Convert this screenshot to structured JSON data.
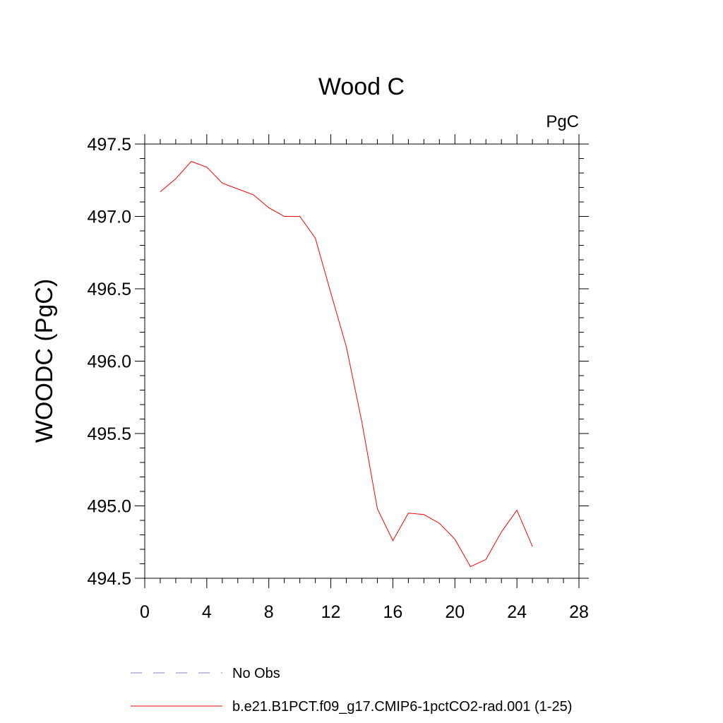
{
  "chart_data": {
    "type": "line",
    "title": "Wood C",
    "units_label": "PgC",
    "ylabel": "WOODC  (PgC)",
    "xlim": [
      0,
      28
    ],
    "ylim": [
      494.5,
      497.5
    ],
    "x_ticks": [
      0,
      4,
      8,
      12,
      16,
      20,
      24,
      28
    ],
    "y_ticks": [
      494.5,
      495.0,
      495.5,
      496.0,
      496.5,
      497.0,
      497.5
    ],
    "y_tick_labels": [
      "494.5",
      "495.0",
      "495.5",
      "496.0",
      "496.5",
      "497.0",
      "497.5"
    ],
    "grid": false,
    "series": [
      {
        "name": "b.e21.B1PCT.f09_g17.CMIP6-1pctCO2-rad.001 (1-25)",
        "color": "#ff0000",
        "x": [
          1,
          2,
          3,
          4,
          5,
          6,
          7,
          8,
          9,
          10,
          11,
          12,
          13,
          14,
          15,
          16,
          17,
          18,
          19,
          20,
          21,
          22,
          23,
          24,
          25
        ],
        "y": [
          497.17,
          497.26,
          497.38,
          497.34,
          497.23,
          497.19,
          497.15,
          497.06,
          497.0,
          497.0,
          496.85,
          496.47,
          496.1,
          495.58,
          494.98,
          494.76,
          494.95,
          494.94,
          494.88,
          494.77,
          494.58,
          494.63,
          494.82,
          494.97,
          494.72
        ]
      }
    ],
    "legend": [
      {
        "label": "No Obs",
        "color": "#8080c0",
        "style": "dashed"
      },
      {
        "label": "b.e21.B1PCT.f09_g17.CMIP6-1pctCO2-rad.001 (1-25)",
        "color": "#ff0000",
        "style": "solid"
      }
    ]
  }
}
